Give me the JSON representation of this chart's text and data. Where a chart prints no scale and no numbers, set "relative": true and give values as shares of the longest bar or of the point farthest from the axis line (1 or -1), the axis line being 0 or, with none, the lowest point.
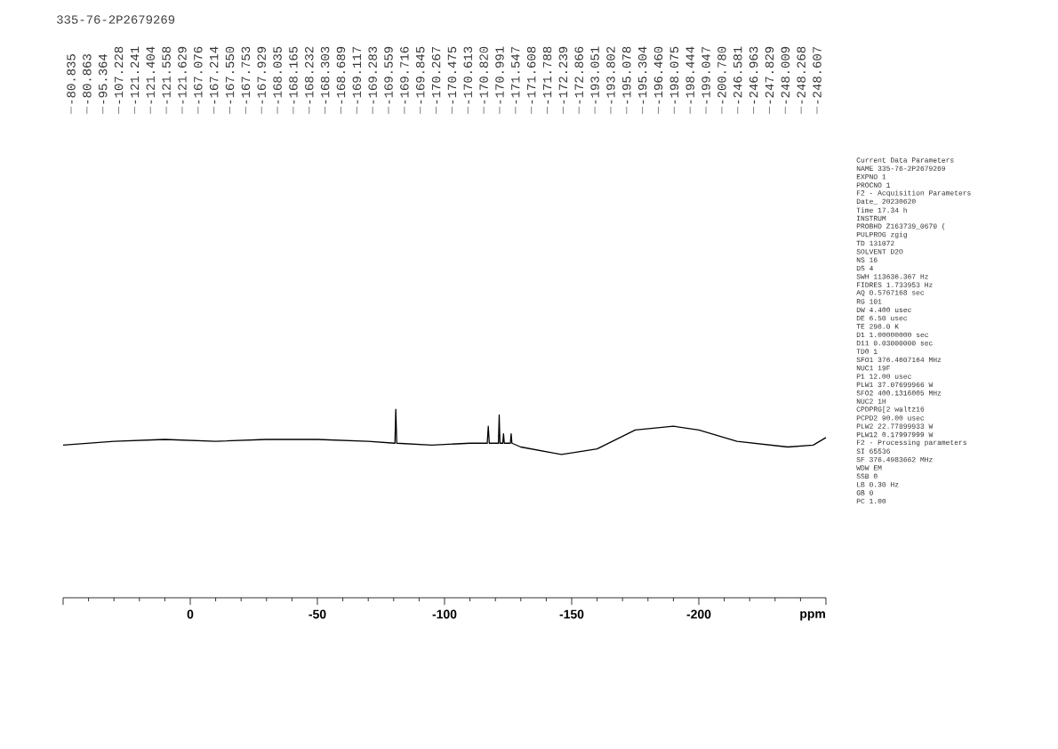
{
  "chart_data": [
    {
      "type": "line",
      "title": "335-76-2P2679269",
      "xlabel": "ppm",
      "relative": true,
      "xlim": [
        50,
        -250
      ],
      "xticks": [
        {
          "value": 50,
          "label": null
        },
        0,
        -50,
        -100,
        -150,
        -200,
        {
          "value": -250,
          "label": null
        }
      ],
      "series": [
        {
          "color": "#000000",
          "x": [
            50,
            30,
            10,
            -10,
            -30,
            -50,
            -70,
            -80.5,
            -80.835,
            -81.2,
            -95,
            -110,
            -116.8,
            -117.2,
            -117.6,
            -121.2,
            -121.5,
            -121.8,
            -122.9,
            -123.2,
            -123.5,
            -125.9,
            -126.2,
            -126.5,
            -130,
            -146,
            -160,
            -175,
            -190,
            -200,
            -215,
            -235,
            -245,
            -250
          ],
          "values": [
            0.81,
            0.83,
            0.84,
            0.83,
            0.84,
            0.84,
            0.83,
            0.82,
            1.0,
            0.82,
            0.81,
            0.82,
            0.82,
            0.91,
            0.82,
            0.82,
            0.97,
            0.82,
            0.82,
            0.87,
            0.82,
            0.82,
            0.87,
            0.82,
            0.8,
            0.76,
            0.79,
            0.89,
            0.91,
            0.89,
            0.83,
            0.8,
            0.81,
            0.85
          ]
        }
      ],
      "annotations": [
        "-80.835",
        "-80.863",
        "-95.364",
        "-107.228",
        "-121.241",
        "-121.404",
        "-121.558",
        "-121.629",
        "-167.076",
        "-167.214",
        "-167.550",
        "-167.753",
        "-167.929",
        "-168.035",
        "-168.165",
        "-168.232",
        "-168.303",
        "-168.689",
        "-169.117",
        "-169.283",
        "-169.559",
        "-169.716",
        "-169.845",
        "-170.267",
        "-170.475",
        "-170.613",
        "-170.820",
        "-170.991",
        "-171.547",
        "-171.608",
        "-171.788",
        "-172.239",
        "-172.866",
        "-193.051",
        "-193.802",
        "-195.078",
        "-195.304",
        "-196.460",
        "-198.075",
        "-198.444",
        "-199.047",
        "-200.780",
        "-246.581",
        "-246.963",
        "-247.829",
        "-248.009",
        "-248.268",
        "-248.607"
      ]
    },
    {
      "type": "other",
      "annotations": [
        "Current Data Parameters",
        "NAME 335-76-2P2679269",
        "EXPNO 1",
        "PROCNO 1",
        "F2 - Acquisition Parameters",
        "Date_ 20230620",
        "Time 17.34 h",
        "INSTRUM",
        "PROBHD Z163739_0670 (",
        "PULPROG zgig",
        "TD 131072",
        "SOLVENT D2O",
        "NS 16",
        "DS 4",
        "SWH 113636.367 Hz",
        "FIDRES 1.733953 Hz",
        "AQ 0.5767168 sec",
        "RG 101",
        "DW 4.400 usec",
        "DE 6.50 usec",
        "TE 298.0 K",
        "D1 1.00000000 sec",
        "D11 0.03000000 sec",
        "TD0 1",
        "SFO1 376.4607164 MHz",
        "NUC1 19F",
        "P1 12.00 usec",
        "PLW1 37.07699966 W",
        "SFO2 400.1316005 MHz",
        "NUC2 1H",
        "CPDPRG[2 waltz16",
        "PCPD2 90.00 usec",
        "PLW2 22.77899933 W",
        "PLW12 0.17997999 W",
        "F2 - Processing parameters",
        "SI 65536",
        "SF 376.4983662 MHz",
        "WDW EM",
        "SSB 0",
        "LB 0.30 Hz",
        "GB 0",
        "PC 1.00"
      ]
    }
  ]
}
